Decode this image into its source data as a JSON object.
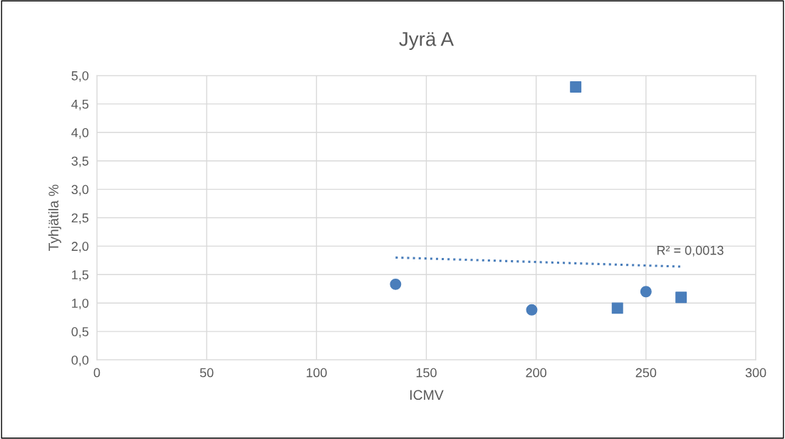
{
  "chart_data": {
    "type": "scatter",
    "title": "Jyrä A",
    "xlabel": "ICMV",
    "ylabel": "Tyhjätila %",
    "series": [
      {
        "marker": "circle",
        "color": "#4a7ebb",
        "x": [
          136,
          198,
          250
        ],
        "values": [
          1.33,
          0.88,
          1.2
        ]
      },
      {
        "marker": "square",
        "color": "#4a7ebb",
        "x": [
          218,
          237,
          266
        ],
        "values": [
          4.8,
          0.91,
          1.1
        ]
      },
      {
        "type": "line",
        "marker": "none",
        "line_style": "dotted",
        "color": "#4a7ebb",
        "x": [
          136,
          266
        ],
        "values": [
          1.8,
          1.64
        ]
      }
    ],
    "annotations": [
      "R² = 0,0013"
    ],
    "xlim": [
      0,
      300
    ],
    "xticks": [
      0,
      50,
      100,
      150,
      200,
      250,
      300
    ],
    "ylim": [
      0,
      5
    ],
    "yticks": [
      {
        "value": 0,
        "label": "0,0"
      },
      {
        "value": 0.5,
        "label": "0,5"
      },
      {
        "value": 1,
        "label": "1,0"
      },
      {
        "value": 1.5,
        "label": "1,5"
      },
      {
        "value": 2,
        "label": "2,0"
      },
      {
        "value": 2.5,
        "label": "2,5"
      },
      {
        "value": 3,
        "label": "3,0"
      },
      {
        "value": 3.5,
        "label": "3,5"
      },
      {
        "value": 4,
        "label": "4,0"
      },
      {
        "value": 4.5,
        "label": "4,5"
      },
      {
        "value": 5,
        "label": "5,0"
      }
    ],
    "grid": true,
    "legend": false
  }
}
